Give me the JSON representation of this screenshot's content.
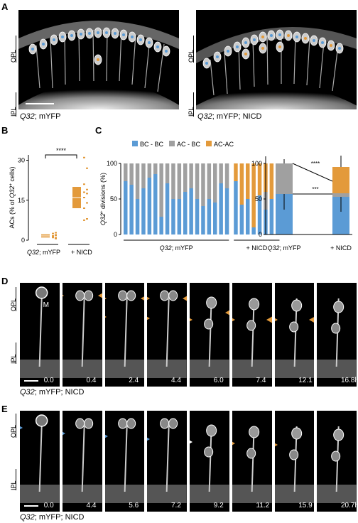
{
  "panels": {
    "A": {
      "letter": "A",
      "left_caption_italic": "Q32",
      "left_caption_rest": "; mYFP",
      "right_caption_italic": "Q32",
      "right_caption_rest": "; mYFP; NICD",
      "layer_top": "OPL",
      "layer_bottom": "IPL"
    },
    "B": {
      "letter": "B"
    },
    "C": {
      "letter": "C"
    },
    "D": {
      "letter": "D",
      "times": [
        "0.0",
        "0.4",
        "2.4",
        "4.4",
        "6.0",
        "7.4",
        "12.1",
        "16.8h"
      ],
      "m_label": "M",
      "caption_italic": "Q32",
      "caption_rest": "; mYFP; NICD",
      "layer_top": "OPL",
      "layer_bottom": "IPL"
    },
    "E": {
      "letter": "E",
      "times": [
        "0.0",
        "4.4",
        "5.6",
        "7.2",
        "9.2",
        "11.2",
        "15.9",
        "20.7h"
      ],
      "caption_italic": "Q32",
      "caption_rest": "; mYFP; NICD",
      "layer_top": "OPL",
      "layer_bottom": "IPL"
    }
  },
  "chart_data": [
    {
      "id": "B",
      "type": "scatter",
      "ylabel": "ACs (% of Q32+ cells)",
      "yticks": [
        0,
        15,
        30
      ],
      "ylim": [
        0,
        32
      ],
      "categories": [
        "Q32; mYFP",
        "+ NICD"
      ],
      "significance": "****",
      "groups": [
        {
          "name": "Q32; mYFP",
          "points": [
            2.5,
            1.8,
            1.2,
            2.0,
            1.5,
            0.6,
            1.0,
            2.8,
            1.6,
            0.9
          ],
          "mean_low": 1.0,
          "mean_high": 2.2,
          "median": 1.6
        },
        {
          "name": "+ NICD",
          "points": [
            31,
            27,
            21,
            19,
            18,
            17.5,
            16,
            14,
            12,
            8,
            7.5
          ],
          "mean_low": 12,
          "mean_high": 20,
          "median": 16
        }
      ]
    },
    {
      "id": "C1",
      "type": "bar",
      "ylabel": "Q32+ divisions (%)",
      "yticks": [
        0,
        50,
        100
      ],
      "ylim": [
        0,
        100
      ],
      "legend": [
        "BC - BC",
        "AC - BC",
        "AC-AC"
      ],
      "colors": {
        "BC - BC": "#5b9bd5",
        "AC - BC": "#a0a0a0",
        "AC-AC": "#e39a3b"
      },
      "group_labels": [
        "Q32; mYFP",
        "+ NICD"
      ],
      "series": [
        {
          "group": "Q32; mYFP",
          "bars": [
            [
              75,
              25,
              0
            ],
            [
              70,
              30,
              0
            ],
            [
              50,
              50,
              0
            ],
            [
              65,
              35,
              0
            ],
            [
              80,
              20,
              0
            ],
            [
              85,
              15,
              0
            ],
            [
              25,
              75,
              0
            ],
            [
              72,
              28,
              0
            ],
            [
              50,
              50,
              0
            ],
            [
              50,
              50,
              0
            ],
            [
              60,
              40,
              0
            ],
            [
              65,
              35,
              0
            ],
            [
              50,
              50,
              0
            ],
            [
              40,
              60,
              0
            ],
            [
              50,
              50,
              0
            ],
            [
              45,
              55,
              0
            ],
            [
              72,
              28,
              0
            ],
            [
              65,
              35,
              0
            ]
          ]
        },
        {
          "group": "+ NICD",
          "bars": [
            [
              75,
              0,
              25
            ],
            [
              42,
              0,
              58
            ],
            [
              50,
              0,
              50
            ],
            [
              10,
              0,
              90
            ],
            [
              55,
              0,
              45
            ],
            [
              35,
              25,
              40
            ],
            [
              50,
              0,
              50
            ],
            [
              55,
              0,
              45
            ]
          ]
        }
      ]
    },
    {
      "id": "C2",
      "type": "bar",
      "yticks": [
        0,
        50,
        100
      ],
      "ylim": [
        0,
        100
      ],
      "categories": [
        "Q32; mYFP",
        "+ NICD"
      ],
      "stacks": [
        {
          "BC - BC": 57,
          "AC - BC": 43,
          "AC-AC": 0
        },
        {
          "BC - BC": 53,
          "AC - BC": 5,
          "AC-AC": 37
        }
      ],
      "error_top": [
        106,
        111
      ],
      "error_bc_low": [
        35,
        32
      ],
      "significance": [
        "****",
        "***"
      ]
    }
  ]
}
